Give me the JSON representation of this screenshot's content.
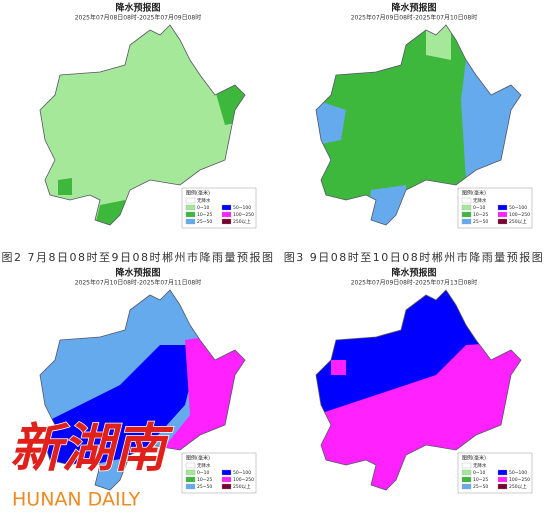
{
  "maps": [
    {
      "title": "降水预报图",
      "period": "2025年07月08日08时-2025年07月09日08时"
    },
    {
      "title": "降水预报图",
      "period": "2025年07月09日08时-2025年07月10日08时"
    },
    {
      "title": "降水预报图",
      "period": "2025年07月10日08时-2025年07月11日08时"
    },
    {
      "title": "降水预报图",
      "period": "2025年07月09日08时-2025年07月13日08时"
    }
  ],
  "captions": [
    "图2 7月8日08时至9日08时郴州市降雨量预报图",
    "图3 9日08时至10日08时郴州市降雨量预报图"
  ],
  "legend": {
    "title": "图例(毫米)",
    "items": [
      {
        "label": "无降水",
        "color": "#ffffff"
      },
      {
        "label": "0~10",
        "color": "#a6e89a"
      },
      {
        "label": "10~25",
        "color": "#3db83d"
      },
      {
        "label": "25~50",
        "color": "#66aaee"
      },
      {
        "label": "50~100",
        "color": "#0000ff"
      },
      {
        "label": "100~250",
        "color": "#ff22ff"
      },
      {
        "label": "250以上",
        "color": "#7a0030"
      }
    ]
  },
  "watermark": {
    "cn": "新湖南",
    "en": "HUNAN DAILY"
  }
}
